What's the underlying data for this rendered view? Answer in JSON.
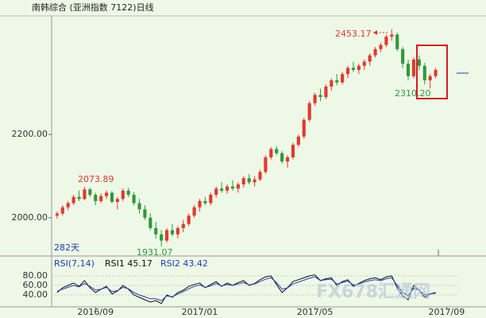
{
  "chart_data": {
    "type": "candlestick",
    "title": "南韩综合 (亚洲指数 7122)日线",
    "up_color": "#e03a2f",
    "down_color": "#2e9a3a",
    "ylim": [
      1908,
      2481
    ],
    "yticks": [
      {
        "value": 2000,
        "label": "2000.00"
      },
      {
        "value": 2200,
        "label": "2200.00"
      }
    ],
    "xlim": [
      -1,
      75
    ],
    "xticks": [
      {
        "value": 7,
        "label": "2016/09"
      },
      {
        "value": 26,
        "label": "2017/01"
      },
      {
        "value": 47,
        "label": "2017/05"
      },
      {
        "value": 71,
        "label": "2017/09"
      }
    ],
    "annotations": [
      "2453.17",
      "2073.89",
      "1931.07",
      "2310.20"
    ],
    "days_label": "282天",
    "ohlc": [
      [
        2005,
        2015,
        1998,
        2010
      ],
      [
        2010,
        2030,
        2005,
        2025
      ],
      [
        2025,
        2040,
        2018,
        2035
      ],
      [
        2035,
        2055,
        2030,
        2050
      ],
      [
        2050,
        2065,
        2040,
        2045
      ],
      [
        2045,
        2073.89,
        2042,
        2068
      ],
      [
        2068,
        2072,
        2050,
        2055
      ],
      [
        2055,
        2060,
        2030,
        2040
      ],
      [
        2040,
        2058,
        2035,
        2052
      ],
      [
        2052,
        2066,
        2045,
        2060
      ],
      [
        2060,
        2064,
        2035,
        2038
      ],
      [
        2038,
        2050,
        2020,
        2045
      ],
      [
        2045,
        2070,
        2040,
        2065
      ],
      [
        2065,
        2072,
        2050,
        2055
      ],
      [
        2055,
        2062,
        2030,
        2035
      ],
      [
        2035,
        2045,
        2010,
        2020
      ],
      [
        2020,
        2030,
        1995,
        2000
      ],
      [
        2000,
        2010,
        1970,
        1975
      ],
      [
        1975,
        1990,
        1950,
        1960
      ],
      [
        1960,
        1970,
        1931.07,
        1945
      ],
      [
        1945,
        1975,
        1940,
        1970
      ],
      [
        1970,
        1985,
        1955,
        1960
      ],
      [
        1960,
        1980,
        1950,
        1975
      ],
      [
        1975,
        1995,
        1965,
        1985
      ],
      [
        1985,
        2010,
        1980,
        2005
      ],
      [
        2005,
        2030,
        2000,
        2025
      ],
      [
        2025,
        2045,
        2015,
        2040
      ],
      [
        2040,
        2050,
        2030,
        2035
      ],
      [
        2035,
        2060,
        2030,
        2055
      ],
      [
        2055,
        2075,
        2048,
        2070
      ],
      [
        2070,
        2085,
        2060,
        2065
      ],
      [
        2065,
        2080,
        2058,
        2075
      ],
      [
        2075,
        2090,
        2065,
        2070
      ],
      [
        2070,
        2085,
        2060,
        2080
      ],
      [
        2080,
        2100,
        2072,
        2095
      ],
      [
        2095,
        2105,
        2080,
        2085
      ],
      [
        2085,
        2100,
        2075,
        2092
      ],
      [
        2092,
        2115,
        2088,
        2110
      ],
      [
        2110,
        2150,
        2105,
        2145
      ],
      [
        2145,
        2170,
        2140,
        2165
      ],
      [
        2165,
        2172,
        2150,
        2155
      ],
      [
        2155,
        2160,
        2130,
        2135
      ],
      [
        2135,
        2150,
        2120,
        2145
      ],
      [
        2145,
        2180,
        2140,
        2175
      ],
      [
        2175,
        2200,
        2170,
        2195
      ],
      [
        2195,
        2240,
        2190,
        2235
      ],
      [
        2235,
        2280,
        2230,
        2275
      ],
      [
        2275,
        2300,
        2268,
        2295
      ],
      [
        2295,
        2310,
        2280,
        2290
      ],
      [
        2290,
        2320,
        2285,
        2315
      ],
      [
        2315,
        2335,
        2305,
        2330
      ],
      [
        2330,
        2345,
        2318,
        2325
      ],
      [
        2325,
        2350,
        2320,
        2345
      ],
      [
        2345,
        2365,
        2335,
        2360
      ],
      [
        2360,
        2375,
        2350,
        2355
      ],
      [
        2355,
        2370,
        2345,
        2365
      ],
      [
        2365,
        2380,
        2355,
        2375
      ],
      [
        2375,
        2395,
        2365,
        2390
      ],
      [
        2390,
        2410,
        2385,
        2405
      ],
      [
        2405,
        2420,
        2398,
        2415
      ],
      [
        2415,
        2440,
        2410,
        2435
      ],
      [
        2435,
        2453.17,
        2425,
        2440
      ],
      [
        2440,
        2445,
        2400,
        2405
      ],
      [
        2405,
        2410,
        2360,
        2370
      ],
      [
        2370,
        2380,
        2330,
        2340
      ],
      [
        2340,
        2385,
        2335,
        2380
      ],
      [
        2380,
        2390,
        2355,
        2365
      ],
      [
        2365,
        2372,
        2320,
        2330
      ],
      [
        2330,
        2345,
        2310.2,
        2340
      ],
      [
        2340,
        2360,
        2335,
        2355
      ]
    ],
    "rsi": {
      "title": "RSI(7,14)",
      "ylim": [
        15,
        95
      ],
      "yticks": [
        {
          "value": 80,
          "label": "80.00"
        },
        {
          "value": 60,
          "label": "60.00"
        },
        {
          "value": 40,
          "label": "40.00"
        }
      ],
      "series": [
        {
          "name": "RSI1 45.17",
          "color": "#111111",
          "values": [
            45,
            55,
            60,
            65,
            58,
            70,
            55,
            45,
            52,
            58,
            42,
            48,
            60,
            52,
            40,
            35,
            30,
            25,
            28,
            22,
            40,
            35,
            45,
            50,
            58,
            62,
            65,
            55,
            62,
            68,
            58,
            65,
            60,
            66,
            70,
            60,
            64,
            72,
            78,
            80,
            62,
            45,
            55,
            68,
            72,
            76,
            80,
            82,
            70,
            74,
            76,
            60,
            68,
            72,
            58,
            64,
            70,
            74,
            76,
            72,
            78,
            80,
            55,
            38,
            30,
            60,
            50,
            35,
            42,
            45.17
          ]
        },
        {
          "name": "RSI2 43.42",
          "color": "#1c3fb8",
          "values": [
            48,
            52,
            56,
            60,
            57,
            64,
            58,
            50,
            52,
            56,
            47,
            49,
            56,
            53,
            45,
            40,
            36,
            32,
            32,
            28,
            38,
            36,
            42,
            47,
            53,
            58,
            61,
            56,
            59,
            64,
            59,
            62,
            60,
            63,
            66,
            61,
            63,
            68,
            73,
            76,
            66,
            52,
            55,
            63,
            67,
            71,
            75,
            78,
            70,
            72,
            73,
            63,
            66,
            69,
            61,
            63,
            67,
            70,
            72,
            70,
            74,
            76,
            60,
            45,
            38,
            54,
            50,
            40,
            42,
            43.42
          ]
        }
      ]
    },
    "watermark": "FX678汇通网"
  }
}
